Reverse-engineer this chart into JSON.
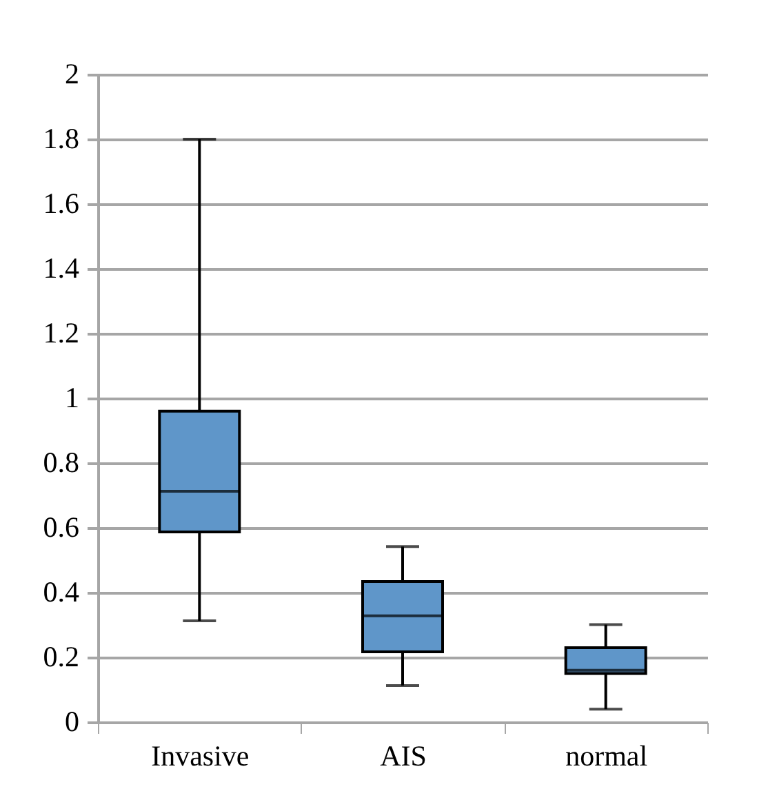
{
  "chart_data": {
    "type": "box",
    "categories": [
      "Invasive",
      "AIS",
      "normal"
    ],
    "boxes": [
      {
        "low": 0.313,
        "q1": 0.587,
        "median": 0.713,
        "q3": 0.96,
        "high": 1.8
      },
      {
        "low": 0.113,
        "q1": 0.217,
        "median": 0.328,
        "q3": 0.434,
        "high": 0.542
      },
      {
        "low": 0.04,
        "q1": 0.15,
        "median": 0.16,
        "q3": 0.23,
        "high": 0.301
      }
    ],
    "color": "#5f96c9",
    "ylim": [
      0,
      2
    ],
    "yticks": [
      0,
      0.2,
      0.4,
      0.6,
      0.8,
      1,
      1.2,
      1.4,
      1.6,
      1.8,
      2
    ],
    "grid": "y"
  }
}
